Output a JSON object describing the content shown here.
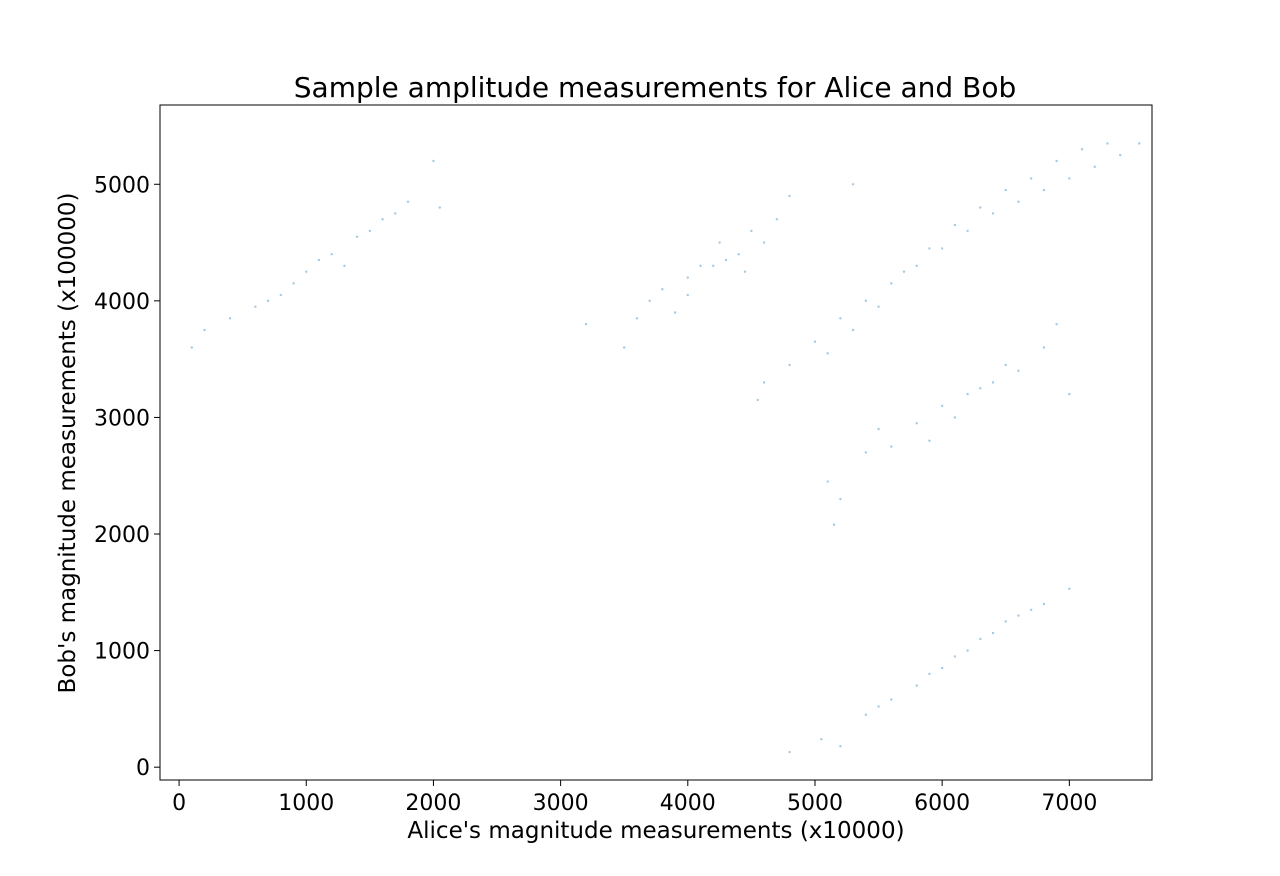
{
  "chart_data": {
    "type": "scatter",
    "title": "Sample amplitude measurements for Alice and Bob",
    "xlabel": "Alice's magnitude measurements (x10000)",
    "ylabel": "Bob's magnitude measurements (x100000)",
    "xlim": [
      -150,
      7650
    ],
    "ylim": [
      -110,
      5680
    ],
    "xticks": [
      0,
      1000,
      2000,
      3000,
      4000,
      5000,
      6000,
      7000
    ],
    "yticks": [
      0,
      1000,
      2000,
      3000,
      4000,
      5000
    ],
    "grid": false,
    "legend": "none",
    "marker_color": "#1f77b4",
    "marker_alpha": 0.4,
    "series": [
      {
        "role": "main-dense-cluster",
        "values": [
          [
            4550,
            3150
          ],
          [
            4600,
            3300
          ],
          [
            4800,
            3450
          ],
          [
            5000,
            3650
          ],
          [
            5200,
            3850
          ],
          [
            5400,
            4000
          ],
          [
            5600,
            4150
          ],
          [
            5800,
            4300
          ],
          [
            6000,
            4450
          ],
          [
            6200,
            4600
          ],
          [
            6400,
            4750
          ],
          [
            6600,
            4850
          ],
          [
            6800,
            4950
          ],
          [
            7000,
            5050
          ],
          [
            7200,
            5150
          ],
          [
            7400,
            5250
          ],
          [
            7550,
            5350
          ],
          [
            5100,
            3550
          ],
          [
            5300,
            3750
          ],
          [
            5500,
            3950
          ],
          [
            5700,
            4250
          ],
          [
            5900,
            4450
          ],
          [
            6100,
            4650
          ],
          [
            6300,
            4800
          ],
          [
            6500,
            4950
          ],
          [
            6700,
            5050
          ],
          [
            6900,
            5200
          ],
          [
            7100,
            5300
          ],
          [
            7300,
            5350
          ]
        ]
      },
      {
        "role": "upper-left-cluster",
        "values": [
          [
            4000,
            4200
          ],
          [
            4200,
            4300
          ],
          [
            4400,
            4400
          ],
          [
            4600,
            4500
          ],
          [
            3800,
            4100
          ],
          [
            3600,
            3850
          ],
          [
            4100,
            4300
          ],
          [
            4300,
            4350
          ],
          [
            4500,
            4600
          ],
          [
            4700,
            4700
          ],
          [
            3900,
            3900
          ],
          [
            4000,
            4050
          ],
          [
            4250,
            4500
          ],
          [
            4450,
            4250
          ],
          [
            3700,
            4000
          ],
          [
            4800,
            4900
          ],
          [
            5300,
            5000
          ],
          [
            3500,
            3600
          ],
          [
            3200,
            3800
          ]
        ]
      },
      {
        "role": "lower-right-cluster",
        "values": [
          [
            5800,
            2950
          ],
          [
            6000,
            3100
          ],
          [
            6200,
            3200
          ],
          [
            6400,
            3300
          ],
          [
            5600,
            2750
          ],
          [
            5400,
            2700
          ],
          [
            6600,
            3400
          ],
          [
            6800,
            3600
          ],
          [
            5900,
            2800
          ],
          [
            6100,
            3000
          ],
          [
            6300,
            3250
          ],
          [
            6500,
            3450
          ],
          [
            5500,
            2900
          ],
          [
            5100,
            2450
          ],
          [
            5200,
            2300
          ],
          [
            6900,
            3800
          ],
          [
            7000,
            3200
          ],
          [
            5150,
            2080
          ]
        ]
      },
      {
        "role": "left-diagonal-cluster",
        "values": [
          [
            100,
            3600
          ],
          [
            200,
            3750
          ],
          [
            400,
            3850
          ],
          [
            600,
            3950
          ],
          [
            800,
            4050
          ],
          [
            1000,
            4250
          ],
          [
            1200,
            4400
          ],
          [
            1400,
            4550
          ],
          [
            1600,
            4700
          ],
          [
            1800,
            4850
          ],
          [
            2000,
            5200
          ],
          [
            2050,
            4800
          ],
          [
            1300,
            4300
          ],
          [
            900,
            4150
          ],
          [
            700,
            4000
          ],
          [
            1500,
            4600
          ],
          [
            1700,
            4750
          ],
          [
            1100,
            4350
          ]
        ]
      },
      {
        "role": "bottom-diagonal-cluster",
        "values": [
          [
            4800,
            130
          ],
          [
            5050,
            240
          ],
          [
            5200,
            180
          ],
          [
            5400,
            450
          ],
          [
            5600,
            580
          ],
          [
            5800,
            700
          ],
          [
            6000,
            850
          ],
          [
            6200,
            1000
          ],
          [
            6400,
            1150
          ],
          [
            6600,
            1300
          ],
          [
            6800,
            1400
          ],
          [
            7000,
            1530
          ],
          [
            5500,
            520
          ],
          [
            5900,
            800
          ],
          [
            6100,
            950
          ],
          [
            6300,
            1100
          ],
          [
            6500,
            1250
          ],
          [
            6700,
            1350
          ]
        ]
      }
    ]
  }
}
